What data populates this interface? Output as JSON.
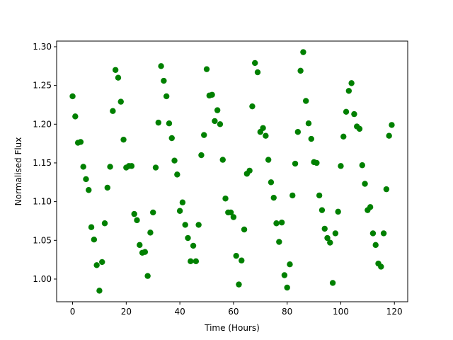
{
  "chart_data": {
    "type": "scatter",
    "x_label": "Time (Hours)",
    "y_label": "Normalised Flux",
    "color": "#008000",
    "x": [
      0,
      1,
      2,
      3,
      4,
      5,
      6,
      7,
      8,
      9,
      10,
      11,
      12,
      13,
      14,
      15,
      16,
      17,
      18,
      19,
      20,
      21,
      22,
      23,
      24,
      25,
      26,
      27,
      28,
      29,
      30,
      31,
      32,
      33,
      34,
      35,
      36,
      37,
      38,
      39,
      40,
      41,
      42,
      43,
      44,
      45,
      46,
      47,
      48,
      49,
      50,
      51,
      52,
      53,
      54,
      55,
      56,
      57,
      58,
      59,
      60,
      61,
      62,
      63,
      64,
      65,
      66,
      67,
      68,
      69,
      70,
      71,
      72,
      73,
      74,
      75,
      76,
      77,
      78,
      79,
      80,
      81,
      82,
      83,
      84,
      85,
      86,
      87,
      88,
      89,
      90,
      91,
      92,
      93,
      94,
      95,
      96,
      97,
      98,
      99,
      100,
      101,
      102,
      103,
      104,
      105,
      106,
      107,
      108,
      109,
      110,
      111,
      112,
      113,
      114,
      115,
      116,
      117,
      118,
      119
    ],
    "values": [
      1.236,
      1.21,
      1.176,
      1.177,
      1.145,
      1.129,
      1.115,
      1.067,
      1.051,
      1.018,
      0.985,
      1.022,
      1.072,
      1.118,
      1.145,
      1.217,
      1.27,
      1.26,
      1.229,
      1.18,
      1.144,
      1.146,
      1.146,
      1.084,
      1.076,
      1.044,
      1.034,
      1.035,
      1.004,
      1.06,
      1.086,
      1.144,
      1.202,
      1.275,
      1.256,
      1.236,
      1.201,
      1.182,
      1.153,
      1.135,
      1.088,
      1.099,
      1.07,
      1.053,
      1.023,
      1.043,
      1.023,
      1.07,
      1.16,
      1.186,
      1.271,
      1.237,
      1.238,
      1.204,
      1.218,
      1.2,
      1.154,
      1.104,
      1.086,
      1.086,
      1.08,
      1.03,
      0.993,
      1.024,
      1.064,
      1.136,
      1.14,
      1.223,
      1.279,
      1.267,
      1.19,
      1.195,
      1.185,
      1.154,
      1.125,
      1.105,
      1.072,
      1.048,
      1.073,
      1.005,
      0.989,
      1.019,
      1.108,
      1.149,
      1.19,
      1.269,
      1.293,
      1.23,
      1.201,
      1.181,
      1.151,
      1.15,
      1.108,
      1.089,
      1.065,
      1.053,
      1.047,
      0.995,
      1.059,
      1.087,
      1.146,
      1.184,
      1.216,
      1.243,
      1.253,
      1.213,
      1.197,
      1.194,
      1.147,
      1.123,
      1.089,
      1.093,
      1.059,
      1.044,
      1.02,
      1.016,
      1.059,
      1.116,
      1.185,
      1.199
    ],
    "xlim": [
      -5.95,
      124.95
    ],
    "ylim": [
      0.9707,
      1.3073
    ],
    "xticks": [
      0,
      20,
      40,
      60,
      80,
      100,
      120
    ],
    "yticks": [
      {
        "value": 1.0,
        "label": "1.00"
      },
      1.05,
      {
        "value": 1.1,
        "label": "1.10"
      },
      1.15,
      {
        "value": 1.2,
        "label": "1.20"
      },
      1.25,
      {
        "value": 1.3,
        "label": "1.30"
      }
    ]
  }
}
